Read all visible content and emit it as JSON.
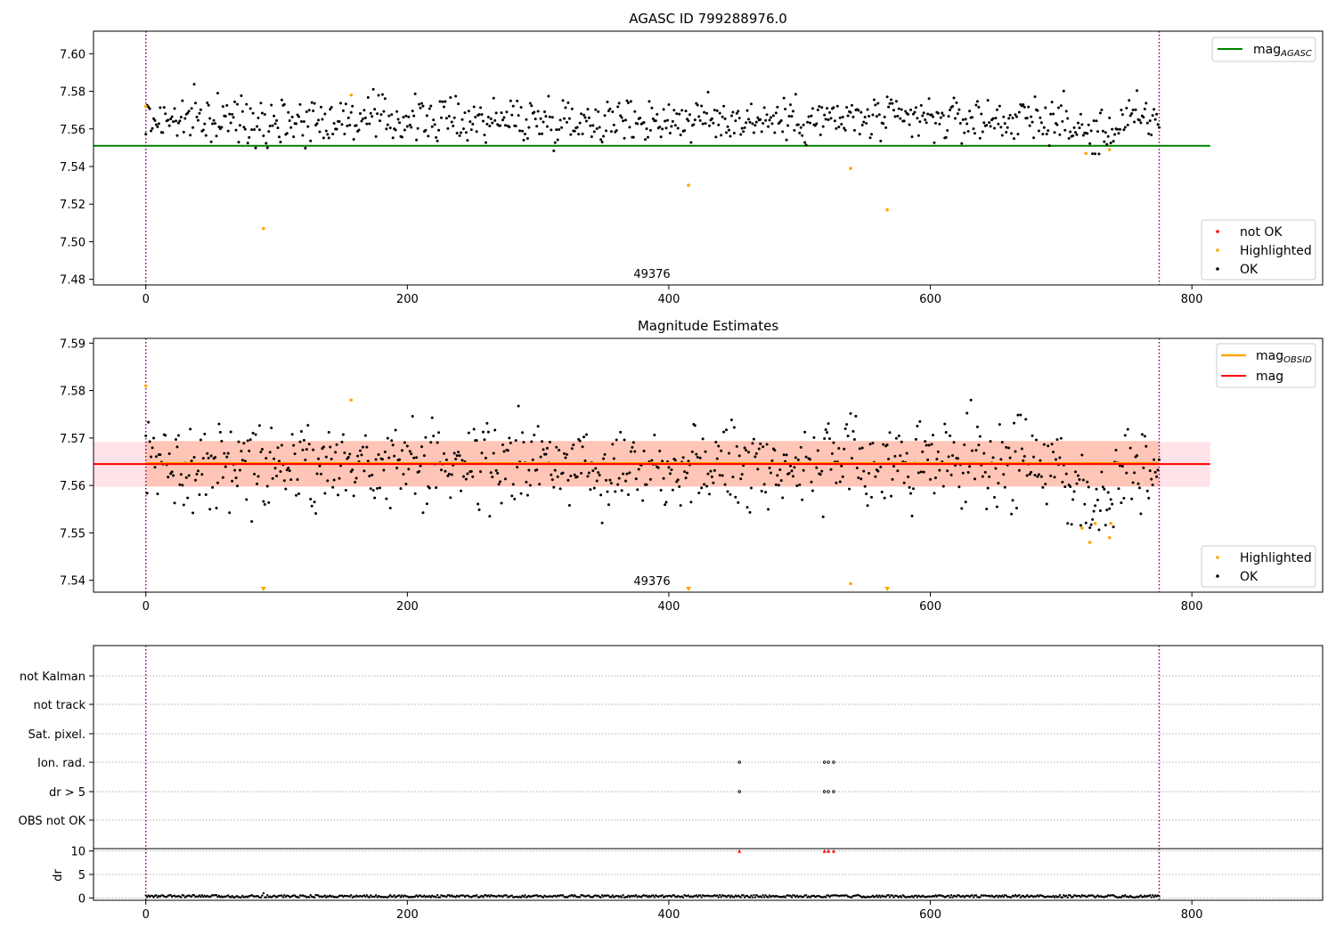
{
  "chart_data": [
    {
      "type": "scatter",
      "title": "AGASC ID 799288976.0",
      "obsid_label": "49376",
      "xlim": [
        -40,
        900
      ],
      "ylim": [
        7.477,
        7.612
      ],
      "x_ticks": [
        0,
        200,
        400,
        600,
        800
      ],
      "y_ticks": [
        7.48,
        7.5,
        7.52,
        7.54,
        7.56,
        7.58,
        7.6
      ],
      "vlines": [
        0,
        775
      ],
      "hline": {
        "name": "mag_AGASC",
        "value": 7.551,
        "x_range": [
          -40,
          814
        ],
        "color": "#008000"
      },
      "legend_upper": [
        "mag_AGASC"
      ],
      "legend_lower": [
        "not OK",
        "Highlighted",
        "OK"
      ],
      "highlighted_points": [
        [
          0,
          7.572
        ],
        [
          90,
          7.507
        ],
        [
          157,
          7.578
        ],
        [
          415,
          7.53
        ],
        [
          539,
          7.539
        ],
        [
          567,
          7.517
        ],
        [
          719,
          7.547
        ],
        [
          737,
          7.549
        ]
      ],
      "ok_series": {
        "n": 776,
        "x_range": [
          0,
          775
        ],
        "mean": 7.565,
        "spread": 0.006,
        "dip_region": [
          700,
          750
        ],
        "dip_depth": 0.008
      }
    },
    {
      "type": "scatter",
      "title": "Magnitude Estimates",
      "obsid_label": "49376",
      "xlim": [
        -40,
        900
      ],
      "ylim": [
        7.5375,
        7.591
      ],
      "x_ticks": [
        0,
        200,
        400,
        600,
        800
      ],
      "y_ticks": [
        7.54,
        7.55,
        7.56,
        7.57,
        7.58,
        7.59
      ],
      "vlines": [
        0,
        775
      ],
      "mag": {
        "value": 7.5645,
        "band": [
          7.5597,
          7.5692
        ],
        "x_range": [
          -40,
          814
        ],
        "color": "#ff0000",
        "band_color": "#ffc0cb"
      },
      "mag_obsid": {
        "value": 7.5647,
        "band": [
          7.5598,
          7.5694
        ],
        "x_range": [
          0,
          775
        ],
        "color": "#ffa500"
      },
      "legend_upper": [
        "mag_OBSID",
        "mag"
      ],
      "legend_lower": [
        "Highlighted",
        "OK"
      ],
      "highlighted_points": [
        [
          0,
          7.581
        ],
        [
          157,
          7.578
        ],
        [
          539,
          7.5393
        ],
        [
          716,
          7.551
        ],
        [
          722,
          7.548
        ],
        [
          726,
          7.552
        ],
        [
          737,
          7.549
        ],
        [
          738,
          7.552
        ]
      ],
      "out_of_range_markers": [
        90,
        415,
        567
      ],
      "ok_series": {
        "n": 776,
        "x_range": [
          0,
          775
        ],
        "mean": 7.5645,
        "spread": 0.0045,
        "dip_region": [
          700,
          750
        ],
        "dip_depth": 0.008
      }
    },
    {
      "type": "scatter",
      "title": "",
      "xlim": [
        -40,
        900
      ],
      "x_ticks": [
        0,
        200,
        400,
        600,
        800
      ],
      "vlines": [
        0,
        775
      ],
      "flag_rows": [
        "not Kalman",
        "not track",
        "Sat. pixel.",
        "Ion. rad.",
        "dr > 5",
        "OBS not OK"
      ],
      "flag_points": {
        "Ion. rad.": [
          454,
          519,
          522,
          526
        ],
        "dr > 5": [
          454,
          519,
          522,
          526
        ]
      },
      "dr_panel": {
        "ylabel": "dr",
        "y_ticks": [
          0,
          5,
          10
        ],
        "ylim": [
          -0.5,
          10.5
        ],
        "series_mean": 0.35,
        "spike": [
          [
            90,
            1.0
          ]
        ],
        "clipped_markers": [
          454,
          519,
          522,
          526
        ]
      }
    }
  ]
}
